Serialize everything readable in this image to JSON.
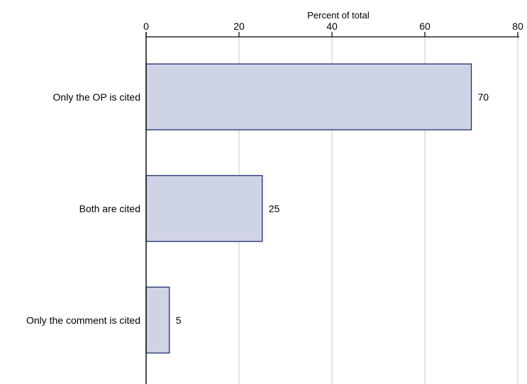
{
  "colors": {
    "bar_fill": "#cfd3e6",
    "bar_stroke": "#1f2f6e",
    "grid": "#dcdcdc",
    "axis": "#000000"
  },
  "chart_data": {
    "type": "bar",
    "orientation": "horizontal",
    "categories": [
      "Only the OP is cited",
      "Both are cited",
      "Only the comment is cited"
    ],
    "values": [
      70,
      25,
      5
    ],
    "data_labels": [
      "70",
      "25",
      "5"
    ],
    "xlabel": "Percent of total",
    "xlabel_position": "top",
    "ylabel": "",
    "xlim": [
      0,
      80
    ],
    "xticks": [
      0,
      20,
      40,
      60,
      80
    ],
    "xtick_labels": [
      "0",
      "20",
      "40",
      "60",
      "80"
    ],
    "grid": true,
    "legend": false
  }
}
